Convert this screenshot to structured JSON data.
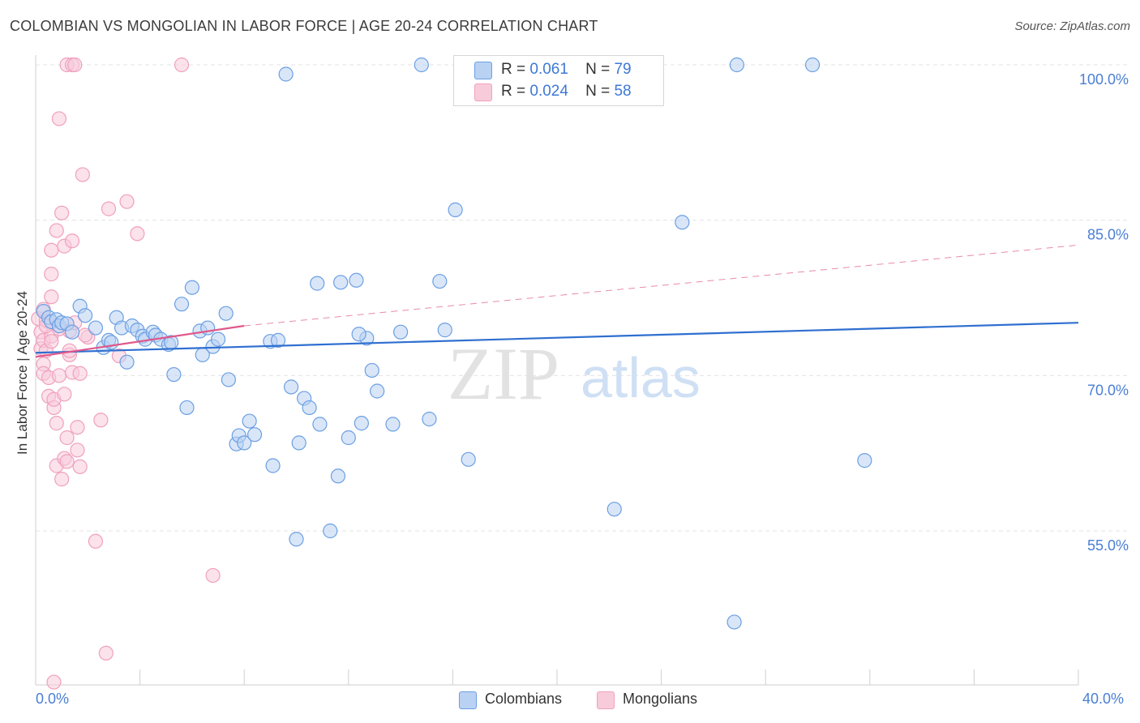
{
  "title": "COLOMBIAN VS MONGOLIAN IN LABOR FORCE | AGE 20-24 CORRELATION CHART",
  "source": "Source: ZipAtlas.com",
  "watermark": {
    "zip": "ZIP",
    "atlas": "atlas"
  },
  "legend": {
    "r_label": "R =",
    "n_label": "N =",
    "rows": [
      {
        "r": "0.061",
        "n": "79"
      },
      {
        "r": "0.024",
        "n": "58"
      }
    ]
  },
  "bottom_legend": [
    "Colombians",
    "Mongolians"
  ],
  "chart_data": {
    "type": "scatter",
    "title": "COLOMBIAN VS MONGOLIAN IN LABOR FORCE | AGE 20-24 CORRELATION CHART",
    "xlabel": "",
    "ylabel": "In Labor Force | Age 20-24",
    "xlim": [
      0,
      40
    ],
    "ylim": [
      40,
      101
    ],
    "x_tick_labels": [
      "0.0%",
      "40.0%"
    ],
    "y_ticks": [
      55,
      70,
      85,
      100
    ],
    "y_tick_labels": [
      "55.0%",
      "70.0%",
      "85.0%",
      "100.0%"
    ],
    "grid": true,
    "series": [
      {
        "name": "Colombians",
        "color": "#6b9fe3",
        "fill": "#b9d1f3",
        "line_color": "#2f6fd0",
        "r": "0.061",
        "n": "79",
        "trend": {
          "x": [
            0,
            40
          ],
          "y": [
            72.2,
            75.1
          ],
          "dashed_to": null
        },
        "points": [
          [
            0.3,
            76.2
          ],
          [
            0.5,
            75.6
          ],
          [
            0.6,
            75.2
          ],
          [
            0.8,
            75.4
          ],
          [
            0.9,
            74.8
          ],
          [
            1.0,
            75.1
          ],
          [
            1.2,
            75.0
          ],
          [
            1.4,
            74.2
          ],
          [
            1.7,
            76.7
          ],
          [
            1.9,
            75.8
          ],
          [
            2.3,
            74.6
          ],
          [
            2.6,
            72.7
          ],
          [
            2.8,
            73.4
          ],
          [
            2.9,
            73.2
          ],
          [
            3.1,
            75.6
          ],
          [
            3.3,
            74.6
          ],
          [
            3.5,
            71.3
          ],
          [
            3.7,
            74.8
          ],
          [
            3.9,
            74.4
          ],
          [
            4.1,
            73.8
          ],
          [
            4.2,
            73.5
          ],
          [
            4.5,
            74.2
          ],
          [
            4.6,
            73.9
          ],
          [
            4.8,
            73.5
          ],
          [
            5.1,
            73.0
          ],
          [
            5.2,
            73.2
          ],
          [
            5.3,
            70.1
          ],
          [
            5.6,
            76.9
          ],
          [
            5.8,
            66.9
          ],
          [
            6.0,
            78.5
          ],
          [
            6.3,
            74.3
          ],
          [
            6.4,
            72.0
          ],
          [
            6.6,
            74.6
          ],
          [
            6.8,
            72.8
          ],
          [
            7.0,
            73.5
          ],
          [
            7.3,
            76.0
          ],
          [
            7.4,
            69.6
          ],
          [
            7.7,
            63.4
          ],
          [
            7.8,
            64.2
          ],
          [
            8.0,
            63.5
          ],
          [
            8.2,
            65.6
          ],
          [
            8.4,
            64.3
          ],
          [
            9.0,
            73.3
          ],
          [
            9.1,
            61.3
          ],
          [
            9.3,
            73.4
          ],
          [
            9.6,
            99.1
          ],
          [
            9.8,
            68.9
          ],
          [
            10.0,
            54.2
          ],
          [
            10.1,
            63.5
          ],
          [
            10.3,
            67.8
          ],
          [
            10.5,
            66.9
          ],
          [
            10.8,
            78.9
          ],
          [
            10.9,
            65.3
          ],
          [
            11.3,
            55.0
          ],
          [
            11.6,
            60.3
          ],
          [
            11.7,
            79.0
          ],
          [
            12.0,
            64.0
          ],
          [
            12.3,
            79.2
          ],
          [
            12.5,
            65.4
          ],
          [
            12.7,
            73.6
          ],
          [
            12.9,
            70.5
          ],
          [
            13.1,
            68.5
          ],
          [
            13.7,
            65.3
          ],
          [
            14.0,
            74.2
          ],
          [
            14.8,
            100.0
          ],
          [
            15.1,
            65.8
          ],
          [
            15.5,
            79.1
          ],
          [
            15.7,
            74.4
          ],
          [
            16.1,
            86.0
          ],
          [
            16.6,
            61.9
          ],
          [
            18.2,
            100.0
          ],
          [
            22.2,
            57.1
          ],
          [
            24.8,
            84.8
          ],
          [
            26.8,
            46.2
          ],
          [
            26.9,
            100.0
          ],
          [
            29.8,
            100.0
          ],
          [
            31.8,
            61.8
          ],
          [
            16.7,
            100.0
          ],
          [
            12.4,
            74.0
          ]
        ]
      },
      {
        "name": "Mongolians",
        "color": "#f0a0bd",
        "fill": "#f8cbdb",
        "line_color": "#e0588a",
        "r": "0.024",
        "n": "58",
        "trend": {
          "x": [
            0,
            8
          ],
          "y": [
            71.8,
            74.8
          ],
          "dashed_to": [
            40,
            82.6
          ]
        },
        "points": [
          [
            0.1,
            75.5
          ],
          [
            0.2,
            74.2
          ],
          [
            0.2,
            72.6
          ],
          [
            0.3,
            73.4
          ],
          [
            0.3,
            71.1
          ],
          [
            0.3,
            70.2
          ],
          [
            0.4,
            75.3
          ],
          [
            0.4,
            72.4
          ],
          [
            0.5,
            68.0
          ],
          [
            0.6,
            77.6
          ],
          [
            0.6,
            73.8
          ],
          [
            0.5,
            69.8
          ],
          [
            0.6,
            82.1
          ],
          [
            0.6,
            79.8
          ],
          [
            0.7,
            66.9
          ],
          [
            0.7,
            67.7
          ],
          [
            0.8,
            65.4
          ],
          [
            0.8,
            61.3
          ],
          [
            0.8,
            84.0
          ],
          [
            0.9,
            94.8
          ],
          [
            0.9,
            70.0
          ],
          [
            1.0,
            85.7
          ],
          [
            1.0,
            60.0
          ],
          [
            1.1,
            62.0
          ],
          [
            1.1,
            82.5
          ],
          [
            1.1,
            68.2
          ],
          [
            1.2,
            61.7
          ],
          [
            1.2,
            64.0
          ],
          [
            1.3,
            72.0
          ],
          [
            1.3,
            72.4
          ],
          [
            1.3,
            74.3
          ],
          [
            1.4,
            83.0
          ],
          [
            1.4,
            70.3
          ],
          [
            1.5,
            75.1
          ],
          [
            1.6,
            65.0
          ],
          [
            1.6,
            62.8
          ],
          [
            1.7,
            61.2
          ],
          [
            1.7,
            70.2
          ],
          [
            1.8,
            89.4
          ],
          [
            2.0,
            73.7
          ],
          [
            2.3,
            54.0
          ],
          [
            2.5,
            65.7
          ],
          [
            2.7,
            43.2
          ],
          [
            2.8,
            86.1
          ],
          [
            3.2,
            71.9
          ],
          [
            3.5,
            86.8
          ],
          [
            3.9,
            83.7
          ],
          [
            5.6,
            100.0
          ],
          [
            6.8,
            50.7
          ],
          [
            1.2,
            100.0
          ],
          [
            1.4,
            100.0
          ],
          [
            1.5,
            100.0
          ],
          [
            0.4,
            74.8
          ],
          [
            0.6,
            73.3
          ],
          [
            0.7,
            40.4
          ],
          [
            0.3,
            76.4
          ],
          [
            0.9,
            74.5
          ],
          [
            1.9,
            73.9
          ]
        ]
      }
    ]
  }
}
